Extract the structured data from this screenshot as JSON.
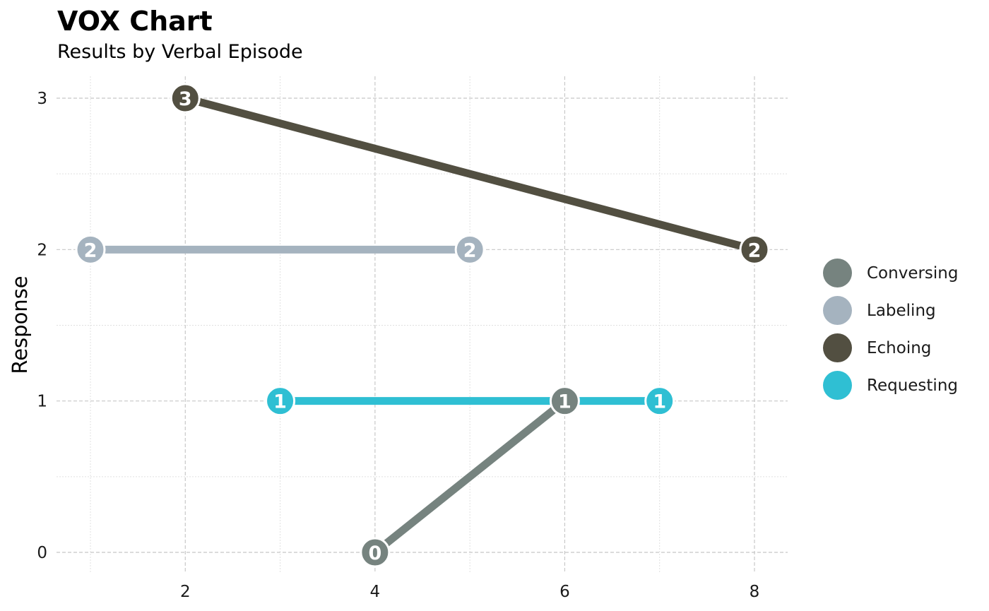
{
  "chart_data": {
    "type": "line",
    "title": "VOX Chart",
    "subtitle": "Results by Verbal Episode",
    "xlabel": "",
    "ylabel": "Response",
    "xlim": [
      0.75,
      8.35
    ],
    "ylim": [
      -0.15,
      3.15
    ],
    "x_ticks": [
      2,
      4,
      6,
      8
    ],
    "y_ticks": [
      0,
      1,
      2,
      3
    ],
    "grid": true,
    "legend_position": "right",
    "series": [
      {
        "name": "Conversing",
        "color": "#76837f",
        "points": [
          {
            "x": 4,
            "y": 0
          },
          {
            "x": 6,
            "y": 1
          }
        ]
      },
      {
        "name": "Labeling",
        "color": "#a5b3bf",
        "points": [
          {
            "x": 1,
            "y": 2
          },
          {
            "x": 5,
            "y": 2
          }
        ]
      },
      {
        "name": "Echoing",
        "color": "#524f41",
        "points": [
          {
            "x": 2,
            "y": 3
          },
          {
            "x": 8,
            "y": 2
          }
        ]
      },
      {
        "name": "Requesting",
        "color": "#2fbfd3",
        "points": [
          {
            "x": 3,
            "y": 1
          },
          {
            "x": 7,
            "y": 1
          }
        ]
      }
    ]
  }
}
